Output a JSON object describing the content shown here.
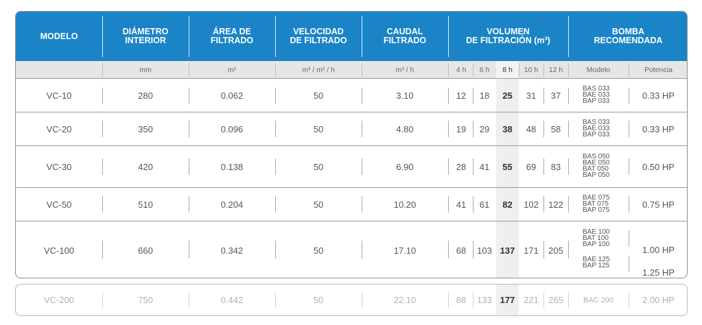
{
  "headers": {
    "modelo": "MODELO",
    "diametro": "DIÁMETRO\nINTERIOR",
    "area": "ÁREA DE\nFILTRADO",
    "velocidad": "VELOCIDAD\nDE FILTRADO",
    "caudal": "CAUDAL\nFILTRADO",
    "volumen": "VOLUMEN\nDE FILTRACIÓN (m³)",
    "bomba": "BOMBA\nRECOMENDADA"
  },
  "units": {
    "modelo": "",
    "diametro": "mm",
    "area": "m²",
    "velocidad": "m³ / m² / h",
    "caudal": "m³ / h",
    "h4": "4 h",
    "h6": "6 h",
    "h8": "8 h",
    "h10": "10 h",
    "h12": "12 h",
    "pump_model": "Modelo",
    "pump_power": "Potencia"
  },
  "rows": [
    {
      "model": "VC-10",
      "diam": "280",
      "area": "0.062",
      "vel": "50",
      "flow": "3.10",
      "v4": "12",
      "v6": "18",
      "v8": "25",
      "v10": "31",
      "v12": "37",
      "pumps": [
        "BAS 033\nBAE 033\nBAP 033"
      ],
      "power": [
        "0.33 HP"
      ]
    },
    {
      "model": "VC-20",
      "diam": "350",
      "area": "0.096",
      "vel": "50",
      "flow": "4.80",
      "v4": "19",
      "v6": "29",
      "v8": "38",
      "v10": "48",
      "v12": "58",
      "pumps": [
        "BAS 033\nBAE 033\nBAP 033"
      ],
      "power": [
        "0.33 HP"
      ]
    },
    {
      "model": "VC-30",
      "diam": "420",
      "area": "0.138",
      "vel": "50",
      "flow": "6.90",
      "v4": "28",
      "v6": "41",
      "v8": "55",
      "v10": "69",
      "v12": "83",
      "pumps": [
        "BAS 050\nBAE 050\nBAT 050\nBAP 050"
      ],
      "power": [
        "0.50 HP"
      ]
    },
    {
      "model": "VC-50",
      "diam": "510",
      "area": "0.204",
      "vel": "50",
      "flow": "10.20",
      "v4": "41",
      "v6": "61",
      "v8": "82",
      "v10": "102",
      "v12": "122",
      "pumps": [
        "BAE 075\nBAT 075\nBAP 075"
      ],
      "power": [
        "0.75 HP"
      ]
    },
    {
      "model": "VC-100",
      "diam": "660",
      "area": "0.342",
      "vel": "50",
      "flow": "17.10",
      "v4": "68",
      "v6": "103",
      "v8": "137",
      "v10": "171",
      "v12": "205",
      "pumps": [
        "BAE 100\nBAT 100\nBAP 100",
        "BAE 125\nBAP 125"
      ],
      "power": [
        "1.00 HP",
        "1.25 HP"
      ]
    }
  ],
  "row200": {
    "model": "VC-200",
    "diam": "750",
    "area": "0.442",
    "vel": "50",
    "flow": "22.10",
    "v4": "88",
    "v6": "133",
    "v8": "177",
    "v10": "221",
    "v12": "265",
    "pump": "BAC 200",
    "power": "2.00 HP"
  },
  "colors": {
    "header": "#1a84c7",
    "unit_row": "#e6e6e6",
    "highlight": "#efefef"
  }
}
